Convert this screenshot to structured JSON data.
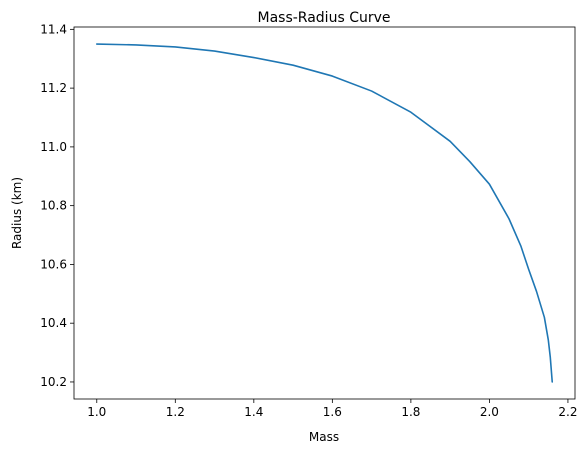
{
  "chart_data": {
    "type": "line",
    "title": "Mass-Radius Curve",
    "xlabel": "Mass",
    "ylabel": "Radius (km)",
    "xlim": [
      0.942,
      2.218
    ],
    "ylim": [
      10.142,
      11.408
    ],
    "xticks": [
      1.0,
      1.2,
      1.4,
      1.6,
      1.8,
      2.0,
      2.2
    ],
    "xtick_labels": [
      "1.0",
      "1.2",
      "1.4",
      "1.6",
      "1.8",
      "2.0",
      "2.2"
    ],
    "yticks": [
      10.2,
      10.4,
      10.6,
      10.8,
      11.0,
      11.2,
      11.4
    ],
    "ytick_labels": [
      "10.2",
      "10.4",
      "10.6",
      "10.8",
      "11.0",
      "11.2",
      "11.4"
    ],
    "grid": false,
    "legend": "none",
    "series": [
      {
        "color": "#1f77b4",
        "x": [
          1.0,
          1.1,
          1.2,
          1.3,
          1.4,
          1.5,
          1.6,
          1.7,
          1.8,
          1.9,
          1.95,
          2.0,
          2.05,
          2.08,
          2.1,
          2.12,
          2.14,
          2.15,
          2.155,
          2.16
        ],
        "y": [
          11.35,
          11.347,
          11.34,
          11.326,
          11.304,
          11.278,
          11.241,
          11.19,
          11.118,
          11.019,
          10.95,
          10.873,
          10.755,
          10.663,
          10.583,
          10.508,
          10.42,
          10.343,
          10.285,
          10.2
        ]
      }
    ]
  }
}
